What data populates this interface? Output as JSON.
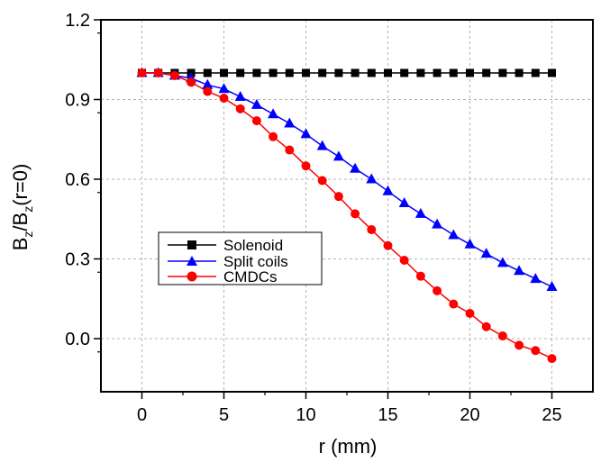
{
  "chart_data": {
    "type": "line",
    "xlabel": "r (mm)",
    "ylabel": {
      "b1": "B",
      "s1": "z",
      "slash": "/B",
      "s2": "z",
      "rest": "(r=0)"
    },
    "xlim": [
      -2.5,
      27.5
    ],
    "ylim": [
      -0.2,
      1.2
    ],
    "xticks": [
      0,
      5,
      10,
      15,
      20,
      25
    ],
    "xtick_labels": [
      "0",
      "5",
      "10",
      "15",
      "20",
      "25"
    ],
    "yticks": [
      0.0,
      0.3,
      0.6,
      0.9,
      1.2
    ],
    "ytick_labels": [
      "0.0",
      "0.3",
      "0.6",
      "0.9",
      "1.2"
    ],
    "grid": true,
    "legend_position": "center-left",
    "x": [
      0,
      1,
      2,
      3,
      4,
      5,
      6,
      7,
      8,
      9,
      10,
      11,
      12,
      13,
      14,
      15,
      16,
      17,
      18,
      19,
      20,
      21,
      22,
      23,
      24,
      25
    ],
    "series": [
      {
        "name": "Solenoid",
        "color": "#000000",
        "marker": "square",
        "values": [
          1,
          1,
          1,
          1,
          1,
          1,
          1,
          1,
          1,
          1,
          1,
          1,
          1,
          1,
          1,
          1,
          1,
          1,
          1,
          1,
          1,
          1,
          1,
          1,
          1,
          1
        ]
      },
      {
        "name": "Split coils",
        "color": "#0000ff",
        "marker": "triangle",
        "values": [
          1.0,
          1.0,
          0.99,
          0.98,
          0.955,
          0.94,
          0.91,
          0.88,
          0.845,
          0.81,
          0.77,
          0.725,
          0.685,
          0.64,
          0.6,
          0.555,
          0.51,
          0.47,
          0.43,
          0.39,
          0.355,
          0.32,
          0.285,
          0.255,
          0.225,
          0.195
        ]
      },
      {
        "name": "CMDCs",
        "color": "#ff0000",
        "marker": "circle",
        "values": [
          1.0,
          1.0,
          0.99,
          0.965,
          0.93,
          0.905,
          0.865,
          0.82,
          0.76,
          0.71,
          0.65,
          0.595,
          0.535,
          0.47,
          0.41,
          0.35,
          0.295,
          0.235,
          0.18,
          0.13,
          0.095,
          0.045,
          0.01,
          -0.025,
          -0.045,
          -0.075
        ]
      }
    ]
  }
}
